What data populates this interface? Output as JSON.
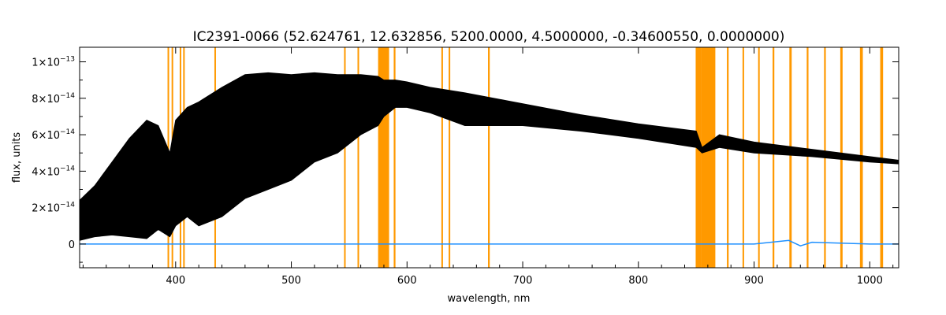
{
  "chart_data": {
    "type": "line",
    "title": "IC2391-0066    (52.624761, 12.632856, 5200.0000, 4.5000000, -0.34600550, 0.0000000)",
    "xlabel": "wavelength, nm",
    "ylabel": "flux, units",
    "xlim": [
      317,
      1025
    ],
    "ylim": [
      -1.3e-14,
      1.08e-13
    ],
    "x_ticks": [
      400,
      500,
      600,
      700,
      800,
      900,
      1000
    ],
    "x_tick_labels": [
      "400",
      "500",
      "600",
      "700",
      "800",
      "900",
      "1000"
    ],
    "y_ticks": [
      0,
      2e-14,
      4e-14,
      6e-14,
      8e-14,
      1e-13
    ],
    "y_tick_labels": [
      {
        "base": "0",
        "exp": ""
      },
      {
        "base": "2×10",
        "exp": "−14"
      },
      {
        "base": "4×10",
        "exp": "−14"
      },
      {
        "base": "6×10",
        "exp": "−14"
      },
      {
        "base": "8×10",
        "exp": "−14"
      },
      {
        "base": "1×10",
        "exp": "−13"
      }
    ],
    "grid": false,
    "colors": {
      "spectrum": "#000000",
      "error": "#1e90ff",
      "mask": "#ff9900"
    },
    "series": [
      {
        "role": "spectrum",
        "x": [
          317,
          330,
          345,
          360,
          375,
          385,
          395,
          400,
          410,
          420,
          440,
          460,
          480,
          500,
          520,
          540,
          560,
          575,
          580,
          590,
          600,
          620,
          650,
          700,
          750,
          800,
          850,
          855,
          870,
          900,
          950,
          1000,
          1025
        ],
        "upper": [
          2.4e-14,
          3.2e-14,
          4.5e-14,
          5.8e-14,
          6.8e-14,
          6.5e-14,
          5e-14,
          6.8e-14,
          7.5e-14,
          7.8e-14,
          8.6e-14,
          9.3e-14,
          9.4e-14,
          9.3e-14,
          9.4e-14,
          9.3e-14,
          9.3e-14,
          9.2e-14,
          9e-14,
          9e-14,
          8.9e-14,
          8.6e-14,
          8.3e-14,
          7.7e-14,
          7.1e-14,
          6.6e-14,
          6.2e-14,
          5.3e-14,
          6e-14,
          5.6e-14,
          5.2e-14,
          4.8e-14,
          4.6e-14
        ],
        "lower": [
          2e-15,
          4e-15,
          5e-15,
          4e-15,
          3e-15,
          8e-15,
          4e-15,
          1e-14,
          1.5e-14,
          1e-14,
          1.5e-14,
          2.5e-14,
          3e-14,
          3.5e-14,
          4.5e-14,
          5e-14,
          6e-14,
          6.5e-14,
          7e-14,
          7.5e-14,
          7.5e-14,
          7.2e-14,
          6.5e-14,
          6.5e-14,
          6.2e-14,
          5.8e-14,
          5.3e-14,
          5e-14,
          5.3e-14,
          5e-14,
          4.8e-14,
          4.5e-14,
          4.4e-14
        ]
      },
      {
        "role": "error",
        "x": [
          317,
          400,
          500,
          600,
          700,
          800,
          900,
          930,
          940,
          950,
          1000,
          1025
        ],
        "y": [
          0,
          0,
          0,
          0,
          0,
          0,
          0,
          2e-15,
          -1e-15,
          1e-15,
          0,
          0
        ]
      }
    ],
    "masked_regions": [
      [
        393.0,
        394.0
      ],
      [
        396.5,
        397.6
      ],
      [
        403.5,
        404.5
      ],
      [
        406.5,
        407.8
      ],
      [
        433.5,
        434.8
      ],
      [
        545.6,
        546.6
      ],
      [
        557.2,
        558.2
      ],
      [
        575.0,
        584.5
      ],
      [
        588.5,
        590.0
      ],
      [
        629.7,
        630.9
      ],
      [
        636.0,
        637.0
      ],
      [
        670.0,
        671.5
      ],
      [
        849.5,
        854.0
      ],
      [
        854.0,
        866.5
      ],
      [
        876.5,
        878.0
      ],
      [
        890.0,
        891.3
      ],
      [
        903.5,
        904.8
      ],
      [
        916.0,
        917.5
      ],
      [
        930.5,
        932.5
      ],
      [
        945.5,
        947.0
      ],
      [
        960.5,
        962.0
      ],
      [
        974.5,
        976.5
      ],
      [
        991.5,
        994.0
      ],
      [
        1009.0,
        1011.5
      ]
    ]
  }
}
